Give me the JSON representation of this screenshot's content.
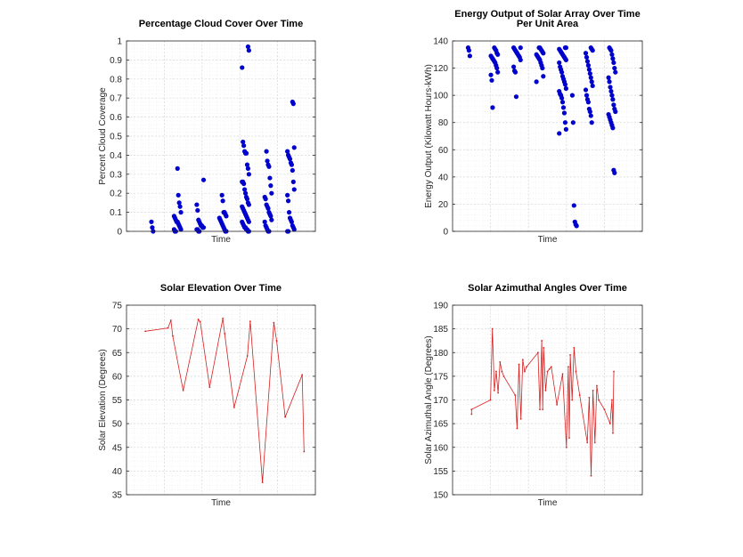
{
  "colors": {
    "scatter": "#0000cc",
    "line": "#d62020",
    "axis": "#262626",
    "grid": "#d9d9d9"
  },
  "chart_data": [
    {
      "type": "scatter",
      "title": [
        "Percentage Cloud Cover Over Time"
      ],
      "xlabel": "Time",
      "ylabel": "Percent Cloud Coverage",
      "ylim": [
        0,
        1
      ],
      "yticks": [
        "0",
        "0.1",
        "0.2",
        "0.3",
        "0.4",
        "0.5",
        "0.6",
        "0.7",
        "0.8",
        "0.9",
        "1"
      ],
      "grid": true,
      "groups": [
        {
          "x": 0.15,
          "values": [
            0.05,
            0.02,
            0.0
          ]
        },
        {
          "x": 0.27,
          "values": [
            0.33,
            0.19,
            0.15,
            0.13,
            0.1,
            0.08,
            0.07,
            0.06,
            0.05,
            0.05,
            0.04,
            0.03,
            0.02,
            0.01,
            0.01,
            0.0,
            0.0
          ]
        },
        {
          "x": 0.39,
          "values": [
            0.27,
            0.14,
            0.11,
            0.06,
            0.05,
            0.04,
            0.03,
            0.03,
            0.02,
            0.02,
            0.01,
            0.01,
            0.0,
            0.0
          ]
        },
        {
          "x": 0.51,
          "values": [
            0.19,
            0.16,
            0.1,
            0.1,
            0.09,
            0.08,
            0.07,
            0.06,
            0.05,
            0.04,
            0.03,
            0.02,
            0.01,
            0.0,
            0.0
          ]
        },
        {
          "x": 0.63,
          "values": [
            0.97,
            0.95,
            0.86,
            0.47,
            0.45,
            0.42,
            0.41,
            0.41,
            0.35,
            0.33,
            0.3,
            0.26,
            0.26,
            0.25,
            0.22,
            0.2,
            0.18,
            0.17,
            0.15,
            0.14,
            0.13,
            0.12,
            0.11,
            0.1,
            0.09,
            0.08,
            0.07,
            0.06,
            0.05,
            0.05,
            0.04,
            0.03,
            0.02,
            0.02,
            0.01,
            0.01,
            0.0,
            0.0
          ]
        },
        {
          "x": 0.75,
          "values": [
            0.42,
            0.37,
            0.35,
            0.34,
            0.28,
            0.24,
            0.2,
            0.18,
            0.17,
            0.14,
            0.13,
            0.12,
            0.1,
            0.09,
            0.08,
            0.06,
            0.05,
            0.03,
            0.02,
            0.01,
            0.0,
            0.0
          ]
        },
        {
          "x": 0.87,
          "values": [
            0.68,
            0.67,
            0.44,
            0.42,
            0.4,
            0.39,
            0.38,
            0.36,
            0.35,
            0.32,
            0.26,
            0.22,
            0.19,
            0.16,
            0.1,
            0.07,
            0.06,
            0.05,
            0.03,
            0.02,
            0.01,
            0.0,
            0.0
          ]
        }
      ]
    },
    {
      "type": "scatter",
      "title": [
        "Energy Output of Solar Array Over Time",
        "Per Unit Area"
      ],
      "xlabel": "Time",
      "ylabel": "Energy Output (Kilowatt Hours-kWh)",
      "ylim": [
        0,
        140
      ],
      "yticks": [
        "0",
        "20",
        "40",
        "60",
        "80",
        "100",
        "120",
        "140"
      ],
      "grid": true,
      "groups": [
        {
          "x": 0.1,
          "values": [
            135,
            133,
            129
          ]
        },
        {
          "x": 0.22,
          "values": [
            135,
            134,
            133,
            131,
            130,
            129,
            128,
            127,
            126,
            125,
            124,
            122,
            120,
            117,
            115,
            111,
            91
          ]
        },
        {
          "x": 0.34,
          "values": [
            135,
            135,
            134,
            133,
            132,
            131,
            130,
            129,
            128,
            126,
            121,
            118,
            117,
            99
          ]
        },
        {
          "x": 0.46,
          "values": [
            135,
            135,
            134,
            133,
            132,
            131,
            130,
            129,
            128,
            127,
            126,
            124,
            122,
            120,
            114,
            110
          ]
        },
        {
          "x": 0.58,
          "values": [
            135,
            135,
            134,
            133,
            132,
            131,
            130,
            129,
            128,
            127,
            126,
            124,
            121,
            119,
            117,
            114,
            112,
            110,
            108,
            105,
            103,
            101,
            100,
            98,
            95,
            91,
            87,
            80,
            75,
            72
          ]
        },
        {
          "x": 0.64,
          "values": [
            100,
            80,
            19,
            7,
            5,
            4
          ]
        },
        {
          "x": 0.72,
          "values": [
            135,
            134,
            133,
            131,
            128,
            125,
            122,
            119,
            116,
            113,
            110,
            107,
            104,
            100,
            97,
            95,
            90,
            88,
            85,
            80
          ]
        },
        {
          "x": 0.84,
          "values": [
            135,
            134,
            133,
            130,
            127,
            124,
            120,
            117,
            113,
            110,
            106,
            103,
            100,
            97,
            93,
            90,
            88,
            86,
            84,
            82,
            80,
            78,
            76,
            45,
            43
          ]
        }
      ]
    },
    {
      "type": "line",
      "title": [
        "Solar Elevation Over Time"
      ],
      "xlabel": "Time",
      "ylabel": "Solar Elevation (Degrees)",
      "ylim": [
        35,
        75
      ],
      "yticks": [
        "35",
        "40",
        "45",
        "50",
        "55",
        "60",
        "65",
        "70",
        "75"
      ],
      "grid": true,
      "x": [
        0.1,
        0.22,
        0.235,
        0.245,
        0.3,
        0.38,
        0.39,
        0.44,
        0.51,
        0.52,
        0.57,
        0.64,
        0.655,
        0.72,
        0.78,
        0.795,
        0.84,
        0.93,
        0.94
      ],
      "y": [
        69.5,
        70.2,
        71.8,
        68.5,
        57.0,
        72.0,
        71.5,
        57.7,
        72.2,
        69.0,
        53.4,
        64.3,
        71.6,
        37.6,
        71.3,
        67.5,
        51.4,
        60.3,
        44.1
      ]
    },
    {
      "type": "line",
      "title": [
        "Solar Azimuthal Angles Over Time"
      ],
      "xlabel": "Time",
      "ylabel": "Solar Azimuthal Angle (Degrees)",
      "ylim": [
        150,
        190
      ],
      "yticks": [
        "150",
        "155",
        "160",
        "165",
        "170",
        "175",
        "180",
        "185",
        "190"
      ],
      "grid": true,
      "x": [
        0.1,
        0.1,
        0.2,
        0.21,
        0.22,
        0.23,
        0.24,
        0.25,
        0.26,
        0.27,
        0.33,
        0.34,
        0.35,
        0.36,
        0.37,
        0.38,
        0.39,
        0.45,
        0.46,
        0.47,
        0.475,
        0.48,
        0.49,
        0.5,
        0.51,
        0.52,
        0.55,
        0.58,
        0.6,
        0.61,
        0.615,
        0.62,
        0.63,
        0.64,
        0.65,
        0.67,
        0.71,
        0.72,
        0.73,
        0.74,
        0.75,
        0.76,
        0.77,
        0.8,
        0.83,
        0.84,
        0.845,
        0.85
      ],
      "y": [
        167.0,
        168.0,
        170.0,
        185.0,
        172.0,
        176.0,
        171.5,
        178.0,
        176.0,
        175.0,
        171.0,
        164.0,
        177.5,
        166.0,
        178.5,
        176.0,
        177.0,
        180.0,
        168.0,
        182.5,
        168.0,
        181.0,
        172.0,
        176.0,
        176.5,
        177.0,
        169.0,
        175.5,
        160.0,
        177.0,
        162.0,
        179.5,
        170.0,
        181.0,
        176.0,
        171.0,
        161.0,
        170.5,
        154.0,
        172.0,
        161.0,
        173.0,
        170.0,
        168.0,
        165.0,
        170.0,
        163.0,
        176.0
      ]
    }
  ]
}
